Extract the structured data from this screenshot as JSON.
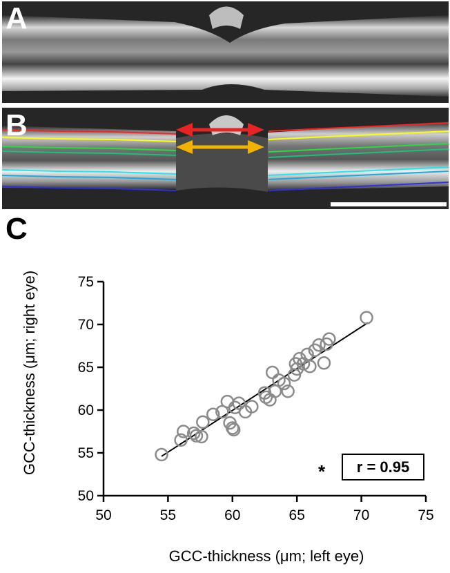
{
  "panels": {
    "a_label": "A",
    "b_label": "B",
    "c_label": "C"
  },
  "oct": {
    "layer_colors": [
      "#ff2020",
      "#ffff00",
      "#22dd44",
      "#19c27a",
      "#22e6ee",
      "#19aadd",
      "#3030dd"
    ],
    "arrow_top_color": "#e82323",
    "arrow_bottom_color": "#f0b400"
  },
  "chart_data": {
    "type": "scatter",
    "xlabel": "GCC-thickness (μm; left eye)",
    "ylabel": "GCC-thickness (μm; right eye)",
    "xlim": [
      50,
      75
    ],
    "ylim": [
      50,
      75
    ],
    "xticks": [
      50,
      55,
      60,
      65,
      70,
      75
    ],
    "yticks": [
      50,
      55,
      60,
      65,
      70,
      75
    ],
    "marker_color": "#8a8a8a",
    "points": [
      [
        54.5,
        54.8
      ],
      [
        56.0,
        56.5
      ],
      [
        56.2,
        57.5
      ],
      [
        57.0,
        57.3
      ],
      [
        57.2,
        57.0
      ],
      [
        57.6,
        56.9
      ],
      [
        57.7,
        58.6
      ],
      [
        58.5,
        59.5
      ],
      [
        59.2,
        59.8
      ],
      [
        59.6,
        61.0
      ],
      [
        59.8,
        58.5
      ],
      [
        60.0,
        57.9
      ],
      [
        60.1,
        57.7
      ],
      [
        60.2,
        60.3
      ],
      [
        60.5,
        60.8
      ],
      [
        61.0,
        59.8
      ],
      [
        61.5,
        60.4
      ],
      [
        62.5,
        62.0
      ],
      [
        62.6,
        61.5
      ],
      [
        62.9,
        61.2
      ],
      [
        63.1,
        64.4
      ],
      [
        63.3,
        62.2
      ],
      [
        63.6,
        63.5
      ],
      [
        64.0,
        63.1
      ],
      [
        64.3,
        62.2
      ],
      [
        64.8,
        64.1
      ],
      [
        64.9,
        65.4
      ],
      [
        65.0,
        64.8
      ],
      [
        65.2,
        66.0
      ],
      [
        65.5,
        65.4
      ],
      [
        65.8,
        66.5
      ],
      [
        66.0,
        65.1
      ],
      [
        66.4,
        67.0
      ],
      [
        66.7,
        67.6
      ],
      [
        67.1,
        65.5
      ],
      [
        67.3,
        67.7
      ],
      [
        67.5,
        68.3
      ],
      [
        70.4,
        70.8
      ]
    ],
    "fit_line": {
      "x": [
        54.5,
        70.5
      ],
      "y": [
        54.6,
        70.2
      ]
    },
    "annotation": {
      "star": "*",
      "r_text": "r = 0.95"
    }
  }
}
